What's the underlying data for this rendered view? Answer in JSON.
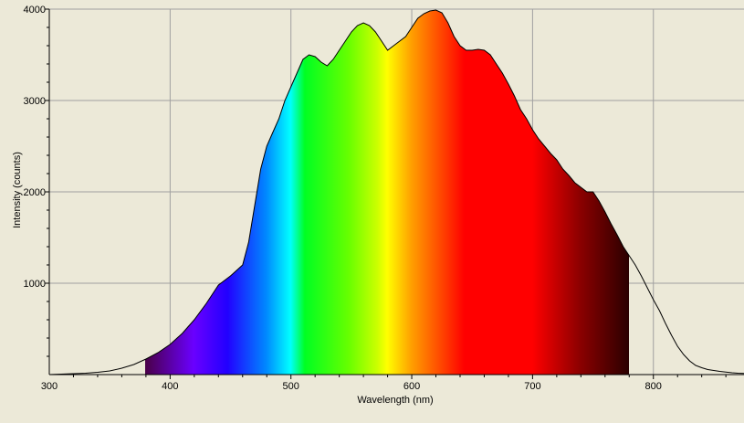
{
  "chart_data": {
    "type": "area",
    "title": "",
    "xlabel": "Wavelength (nm)",
    "ylabel": "Intensity (counts)",
    "xlim": [
      300,
      875
    ],
    "ylim": [
      0,
      4000
    ],
    "grid": true,
    "legend": "none",
    "x_ticks": [
      "300",
      "400",
      "500",
      "600",
      "700",
      "800"
    ],
    "y_ticks": [
      "1000",
      "2000",
      "3000",
      "4000"
    ],
    "visible_spectrum_range_nm": [
      380,
      780
    ],
    "series": [
      {
        "x": [
          300,
          310,
          320,
          330,
          340,
          350,
          360,
          370,
          380,
          390,
          400,
          410,
          420,
          430,
          440,
          450,
          460,
          465,
          470,
          475,
          480,
          485,
          490,
          495,
          500,
          505,
          510,
          515,
          520,
          525,
          530,
          535,
          540,
          545,
          550,
          555,
          560,
          565,
          570,
          575,
          580,
          585,
          590,
          595,
          600,
          605,
          610,
          615,
          620,
          625,
          630,
          635,
          640,
          645,
          650,
          655,
          660,
          665,
          670,
          675,
          680,
          685,
          690,
          695,
          700,
          705,
          710,
          715,
          720,
          725,
          730,
          735,
          740,
          745,
          750,
          755,
          760,
          765,
          770,
          775,
          780,
          785,
          790,
          795,
          800,
          805,
          810,
          815,
          820,
          825,
          830,
          835,
          840,
          845,
          850,
          855,
          860,
          865,
          870,
          875
        ],
        "y": [
          0,
          5,
          10,
          15,
          25,
          40,
          70,
          110,
          170,
          240,
          330,
          450,
          600,
          780,
          980,
          1080,
          1200,
          1450,
          1850,
          2250,
          2500,
          2650,
          2800,
          3000,
          3150,
          3300,
          3450,
          3500,
          3480,
          3420,
          3380,
          3450,
          3550,
          3650,
          3750,
          3820,
          3850,
          3820,
          3750,
          3650,
          3550,
          3600,
          3650,
          3700,
          3800,
          3900,
          3950,
          3980,
          3990,
          3960,
          3850,
          3700,
          3600,
          3550,
          3550,
          3560,
          3550,
          3500,
          3400,
          3300,
          3180,
          3050,
          2900,
          2800,
          2680,
          2580,
          2500,
          2420,
          2350,
          2250,
          2180,
          2100,
          2050,
          2000,
          2000,
          1900,
          1780,
          1650,
          1530,
          1400,
          1300,
          1200,
          1080,
          950,
          820,
          700,
          560,
          430,
          310,
          220,
          150,
          100,
          75,
          55,
          45,
          35,
          28,
          20,
          15,
          12
        ]
      }
    ]
  }
}
